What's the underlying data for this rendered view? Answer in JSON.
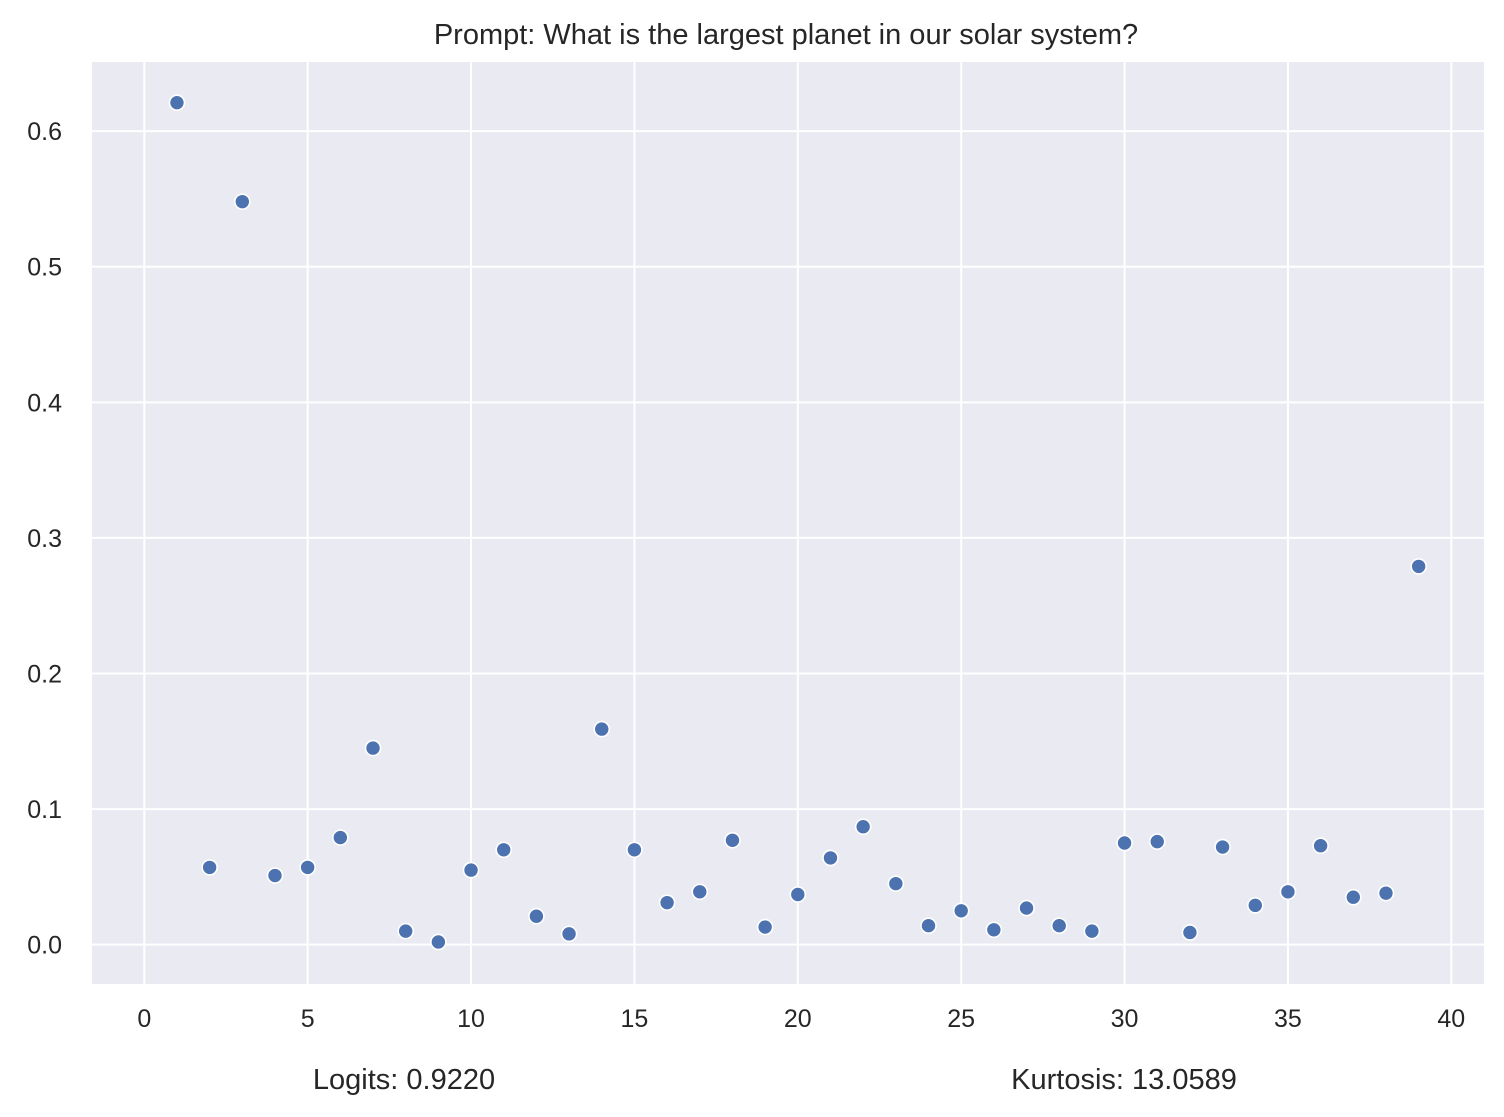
{
  "chart_data": {
    "type": "scatter",
    "title": "Prompt: What is the largest planet in our solar system?",
    "xlabel": "",
    "ylabel": "",
    "xlim": [
      -1.6,
      41.0
    ],
    "ylim": [
      -0.029,
      0.651
    ],
    "x_ticks": [
      0,
      5,
      10,
      15,
      20,
      25,
      30,
      35,
      40
    ],
    "y_ticks": [
      0.0,
      0.1,
      0.2,
      0.3,
      0.4,
      0.5,
      0.6
    ],
    "x_tick_labels": [
      "0",
      "5",
      "10",
      "15",
      "20",
      "25",
      "30",
      "35",
      "40"
    ],
    "y_tick_labels": [
      "0.0",
      "0.1",
      "0.2",
      "0.3",
      "0.4",
      "0.5",
      "0.6"
    ],
    "grid": true,
    "background_color": "#eaeaf2",
    "grid_color": "#ffffff",
    "marker_color": "#4c72b0",
    "x": [
      1,
      2,
      3,
      4,
      5,
      6,
      7,
      8,
      9,
      10,
      11,
      12,
      13,
      14,
      15,
      16,
      17,
      18,
      19,
      20,
      21,
      22,
      23,
      24,
      25,
      26,
      27,
      28,
      29,
      30,
      31,
      32,
      33,
      34,
      35,
      36,
      37,
      38,
      39
    ],
    "y": [
      0.621,
      0.057,
      0.548,
      0.051,
      0.057,
      0.079,
      0.145,
      0.01,
      0.002,
      0.055,
      0.07,
      0.021,
      0.008,
      0.159,
      0.07,
      0.031,
      0.039,
      0.077,
      0.013,
      0.037,
      0.064,
      0.087,
      0.045,
      0.014,
      0.025,
      0.011,
      0.027,
      0.014,
      0.01,
      0.075,
      0.076,
      0.009,
      0.072,
      0.029,
      0.039,
      0.073,
      0.035,
      0.038,
      0.279
    ]
  },
  "footer": {
    "logits": "Logits: 0.9220",
    "kurtosis": "Kurtosis: 13.0589"
  }
}
